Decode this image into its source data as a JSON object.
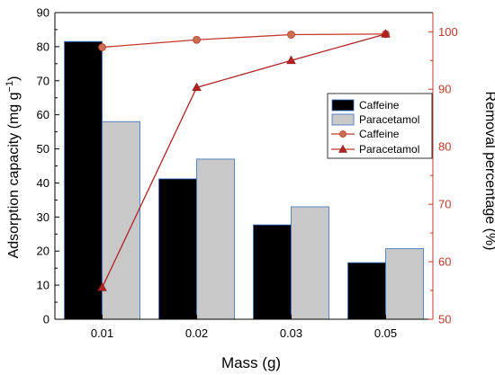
{
  "chart_data": {
    "type": "bar",
    "categories": [
      "0.01",
      "0.02",
      "0.03",
      "0.05"
    ],
    "xlabel": "Mass (g)",
    "ylabel_left": {
      "base": "Adsorption capacity (mg g",
      "sup": "−1",
      "end": ")"
    },
    "ylabel_right": "Removal percentage (%)",
    "y_left": {
      "min": 0,
      "max": 90,
      "ticks": [
        "0",
        "10",
        "20",
        "30",
        "40",
        "50",
        "60",
        "70",
        "80",
        "90"
      ]
    },
    "y_right": {
      "min": 50,
      "max": 103.33,
      "ticks": [
        "50",
        "60",
        "70",
        "80",
        "90",
        "100"
      ],
      "tick_values": [
        50,
        60,
        70,
        80,
        90,
        100
      ]
    },
    "bar_series": [
      {
        "name": "Caffeine",
        "values": [
          81.5,
          41.2,
          27.7,
          16.6
        ],
        "color": "#000000"
      },
      {
        "name": "Paracetamol",
        "values": [
          58.0,
          47.0,
          33.0,
          20.7
        ],
        "color": "#c8c8c8"
      }
    ],
    "line_series": [
      {
        "name": "Caffeine",
        "values": [
          97.3,
          98.6,
          99.5,
          99.6
        ],
        "color": "#c0392b",
        "marker": "circle"
      },
      {
        "name": "Paracetamol",
        "values": [
          55.5,
          90.3,
          95.0,
          99.6
        ],
        "color": "#b22222",
        "marker": "triangle"
      }
    ],
    "legend_position": "right-middle",
    "colors": {
      "right_axis": "#c0392b",
      "bar_edge": "#3a6fc4"
    }
  }
}
